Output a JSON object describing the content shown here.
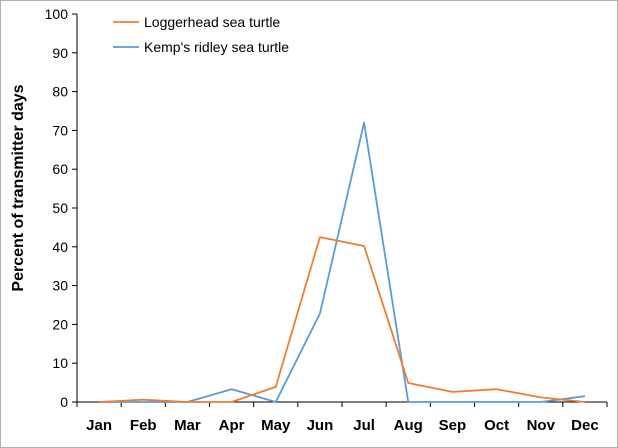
{
  "chart_data": {
    "type": "line",
    "categories": [
      "Jan",
      "Feb",
      "Mar",
      "Apr",
      "May",
      "Jun",
      "Jul",
      "Aug",
      "Sep",
      "Oct",
      "Nov",
      "Dec"
    ],
    "series": [
      {
        "name": "Loggerhead sea turtle",
        "color": "#ED7D31",
        "values": [
          0,
          0.6,
          0,
          0,
          3.9,
          42.5,
          40.2,
          4.9,
          2.6,
          3.3,
          1.2,
          0
        ]
      },
      {
        "name": "Kemp's ridley sea turtle",
        "color": "#5B9BD5",
        "values": [
          0,
          0,
          0,
          3.3,
          0,
          22.8,
          72.0,
          0,
          0,
          0,
          0,
          1.5
        ]
      }
    ],
    "title": "",
    "xlabel": "",
    "ylabel": "Percent of transmitter days",
    "ylim": [
      0,
      100
    ],
    "yticks": [
      0,
      10,
      20,
      30,
      40,
      50,
      60,
      70,
      80,
      90,
      100
    ],
    "grid": false,
    "legend": "top-left"
  }
}
